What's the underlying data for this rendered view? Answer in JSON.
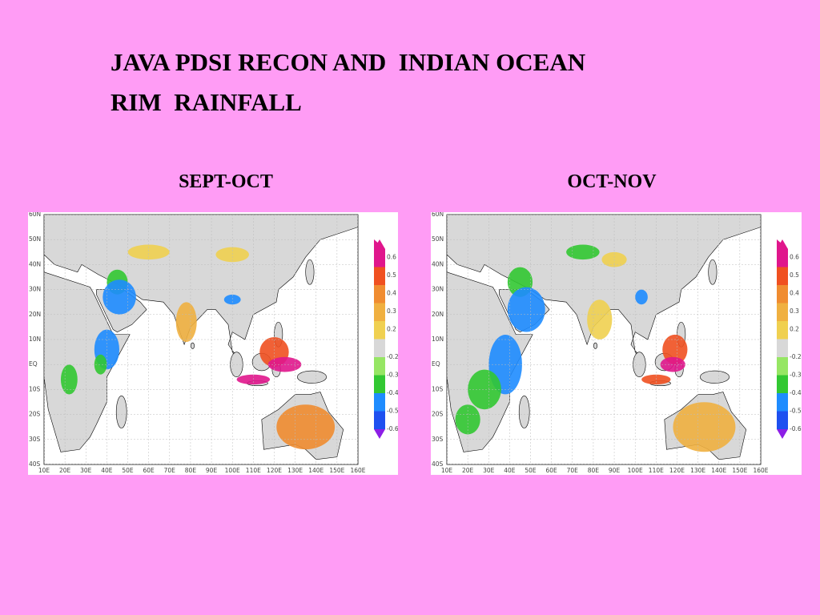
{
  "title": [
    "JAVA PDSI RECON AND  INDIAN OCEAN",
    "RIM  RAINFALL"
  ],
  "panels": [
    {
      "label": "SEPT-OCT",
      "lat_labels": [
        "60N",
        "50N",
        "40N",
        "30N",
        "20N",
        "10N",
        "EQ",
        "10S",
        "20S",
        "30S",
        "40S"
      ],
      "lon_labels": [
        "10E",
        "20E",
        "30E",
        "40E",
        "50E",
        "60E",
        "70E",
        "80E",
        "90E",
        "100E",
        "110E",
        "120E",
        "130E",
        "140E",
        "150E",
        "160E"
      ],
      "colorbar_labels": [
        "0.6",
        "0.5",
        "0.4",
        "0.3",
        "0.2",
        "-0.2",
        "-0.3",
        "-0.4",
        "-0.5",
        "-0.6"
      ]
    },
    {
      "label": "OCT-NOV",
      "lat_labels": [
        "60N",
        "50N",
        "40N",
        "30N",
        "20N",
        "10N",
        "EQ",
        "10S",
        "20S",
        "30S",
        "40S"
      ],
      "lon_labels": [
        "10E",
        "20E",
        "30E",
        "40E",
        "50E",
        "60E",
        "70E",
        "80E",
        "90E",
        "100E",
        "110E",
        "120E",
        "130E",
        "140E",
        "150E",
        "160E"
      ],
      "colorbar_labels": [
        "0.6",
        "0.5",
        "0.4",
        "0.3",
        "0.2",
        "-0.2",
        "-0.3",
        "-0.4",
        "-0.5",
        "-0.6"
      ]
    }
  ]
}
